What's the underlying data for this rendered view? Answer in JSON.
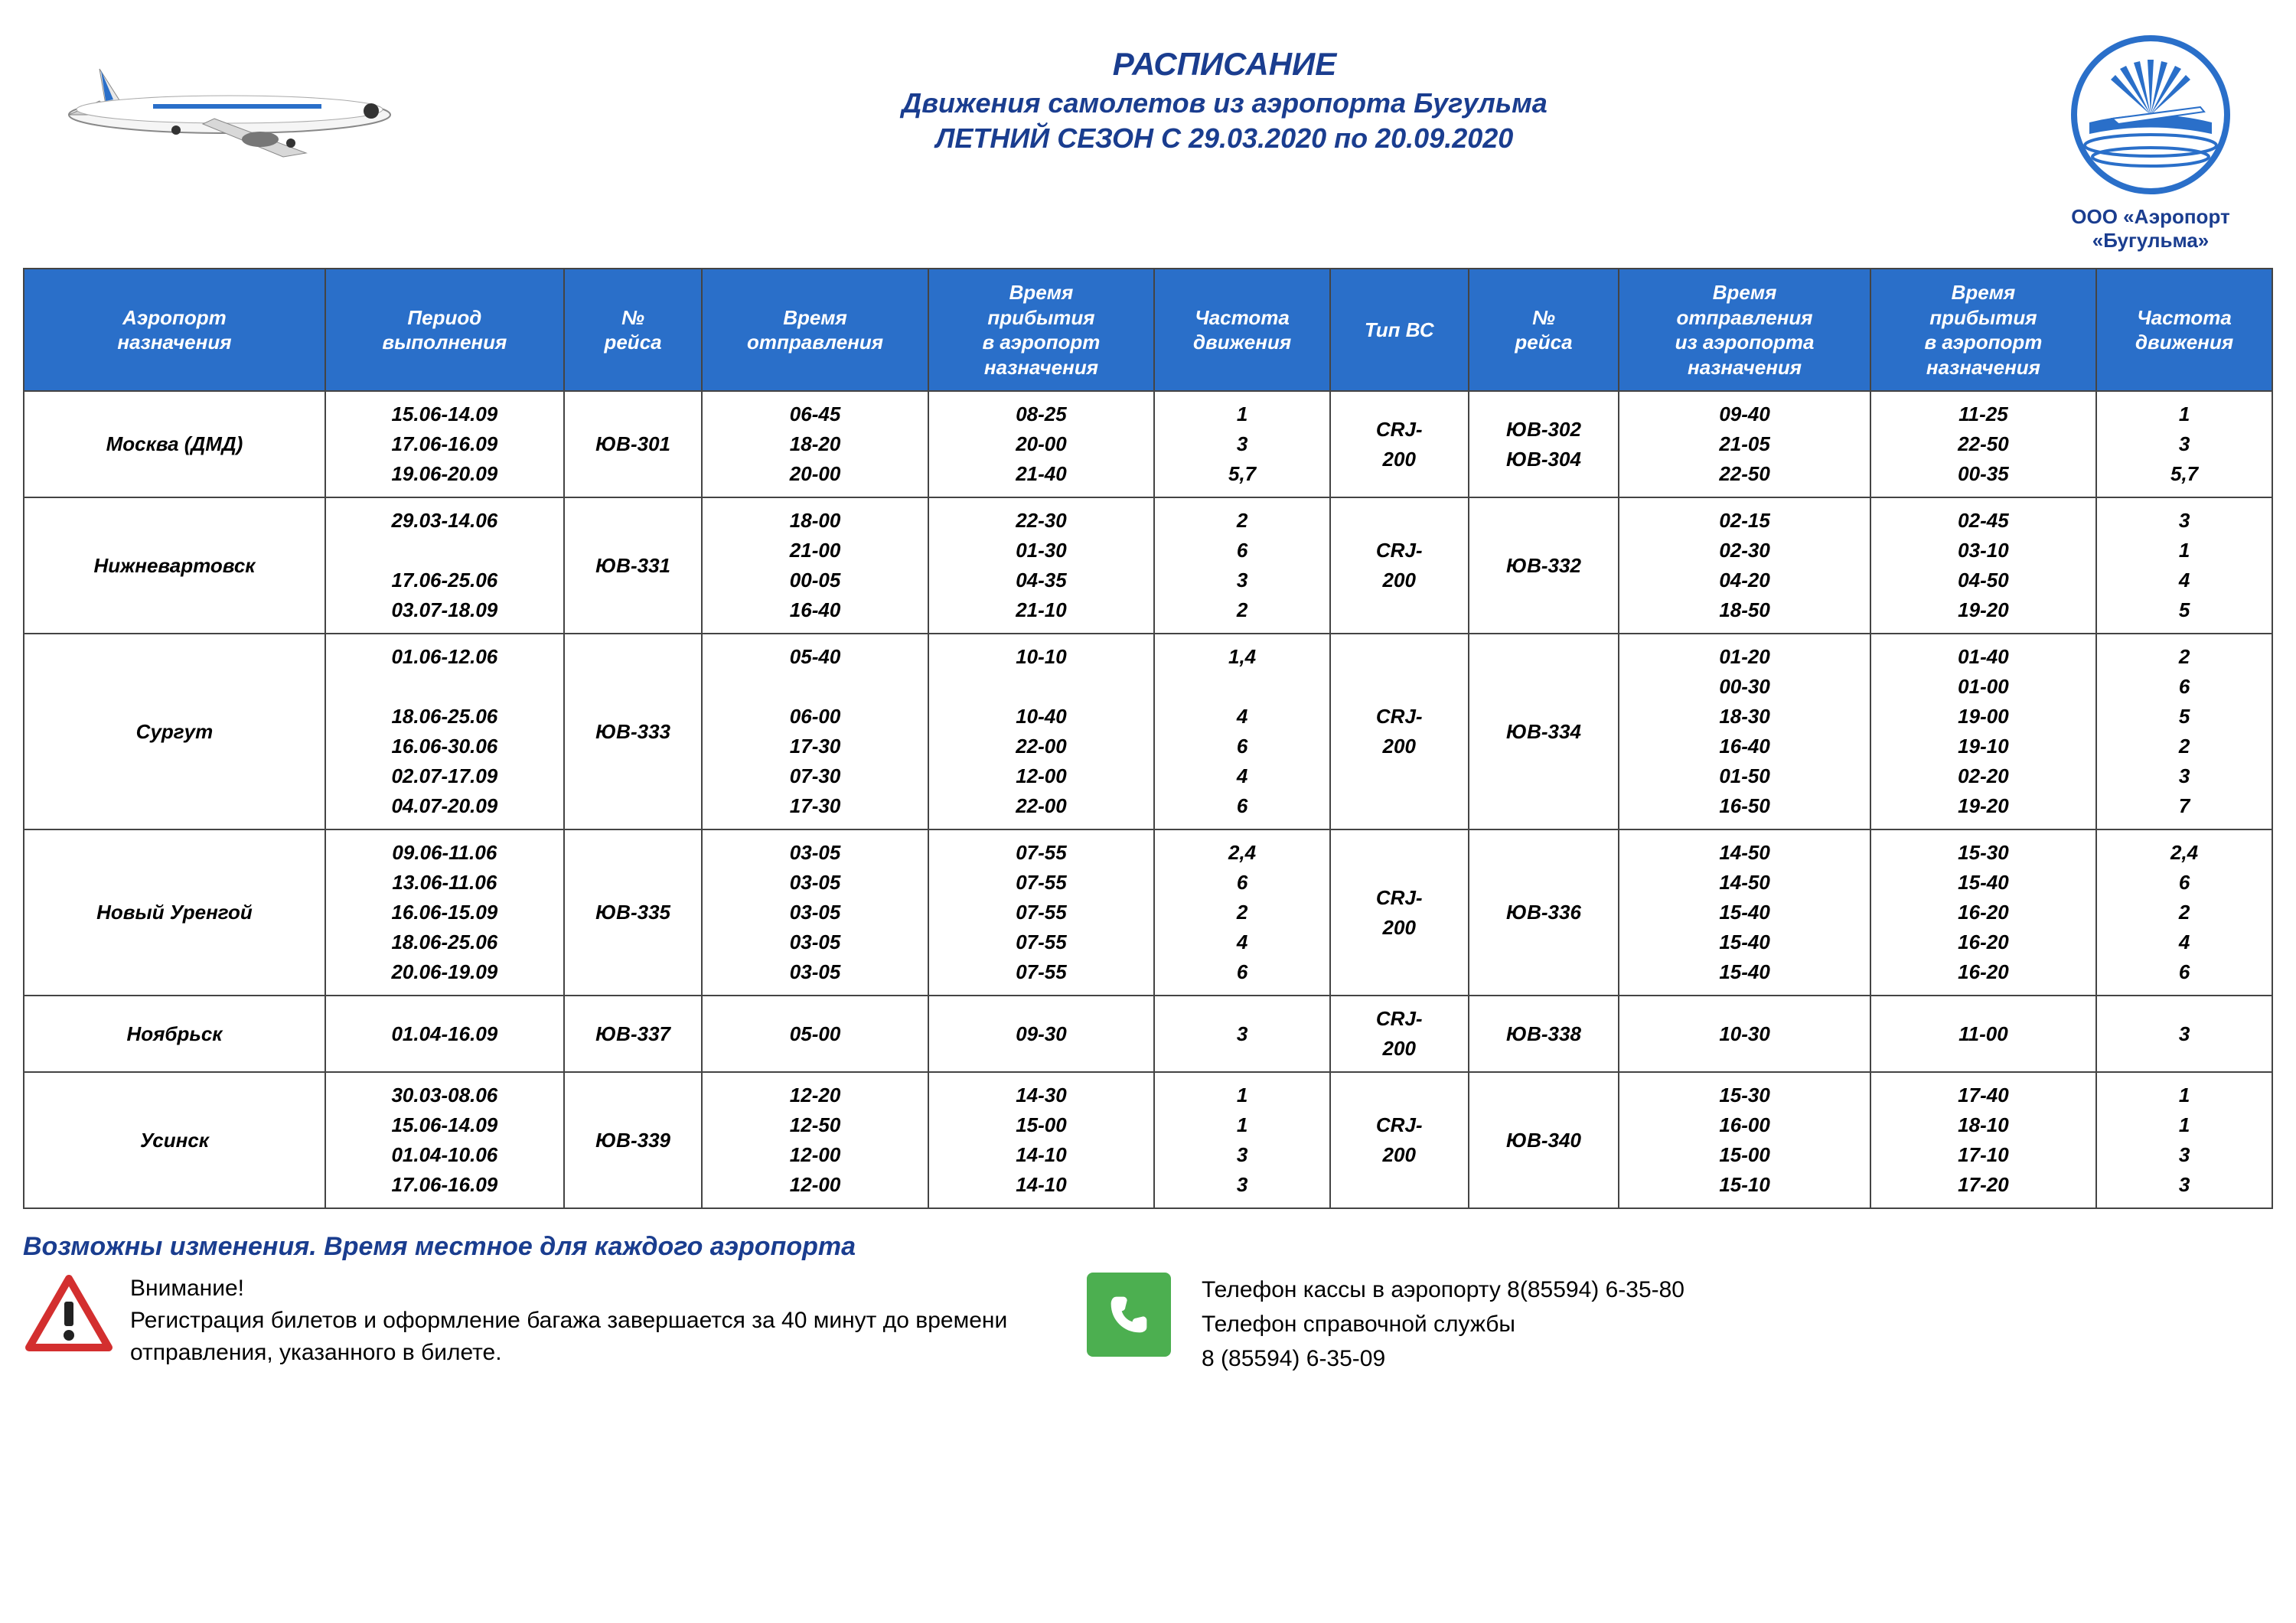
{
  "header": {
    "title": "РАСПИСАНИЕ",
    "subtitle": "Движения самолетов из аэропорта Бугульма",
    "season": "ЛЕТНИЙ СЕЗОН С 29.03.2020 по 20.09.2020",
    "logo_caption": "ООО «Аэропорт «Бугульма»"
  },
  "columns": [
    "Аэропорт\nназначения",
    "Период\nвыполнения",
    "№\nрейса",
    "Время\nотправления",
    "Время\nприбытия\nв аэропорт\nназначения",
    "Частота\nдвижения",
    "Тип ВС",
    "№\nрейса",
    "Время\nотправления\nиз аэропорта\nназначения",
    "Время\nприбытия\nв аэропорт\nназначения",
    "Частота\nдвижения"
  ],
  "rows": [
    {
      "dest": "Москва (ДМД)",
      "period": "15.06-14.09\n17.06-16.09\n19.06-20.09",
      "f1": "ЮВ-301",
      "dep1": "06-45\n18-20\n20-00",
      "arr1": "08-25\n20-00\n21-40",
      "freq1": "1\n3\n5,7",
      "type": "CRJ-\n200",
      "f2": "ЮВ-302\nЮВ-304",
      "dep2": "09-40\n21-05\n22-50",
      "arr2": "11-25\n22-50\n00-35",
      "freq2": "1\n3\n5,7"
    },
    {
      "dest": "Нижневартовск",
      "period": "29.03-14.06\n\n17.06-25.06\n03.07-18.09",
      "f1": "ЮВ-331",
      "dep1": "18-00\n21-00\n00-05\n16-40",
      "arr1": "22-30\n01-30\n04-35\n21-10",
      "freq1": "2\n6\n3\n2",
      "type": "CRJ-\n200",
      "f2": "ЮВ-332",
      "dep2": "02-15\n02-30\n04-20\n18-50",
      "arr2": "02-45\n03-10\n04-50\n19-20",
      "freq2": "3\n1\n4\n5"
    },
    {
      "dest": "Сургут",
      "period": "01.06-12.06\n\n18.06-25.06\n16.06-30.06\n02.07-17.09\n04.07-20.09",
      "f1": "ЮВ-333",
      "dep1": "05-40\n\n06-00\n17-30\n07-30\n17-30",
      "arr1": "10-10\n\n10-40\n22-00\n12-00\n22-00",
      "freq1": "1,4\n\n4\n6\n4\n6",
      "type": "CRJ-\n200",
      "f2": "ЮВ-334",
      "dep2": "01-20\n00-30\n18-30\n16-40\n01-50\n16-50",
      "arr2": "01-40\n01-00\n19-00\n19-10\n02-20\n19-20",
      "freq2": "2\n6\n5\n2\n3\n7"
    },
    {
      "dest": "Новый Уренгой",
      "period": "09.06-11.06\n13.06-11.06\n16.06-15.09\n18.06-25.06\n20.06-19.09",
      "f1": "ЮВ-335",
      "dep1": "03-05\n03-05\n03-05\n03-05\n03-05",
      "arr1": "07-55\n07-55\n07-55\n07-55\n07-55",
      "freq1": "2,4\n6\n2\n4\n6",
      "type": "CRJ-\n200",
      "f2": "ЮВ-336",
      "dep2": "14-50\n14-50\n15-40\n15-40\n15-40",
      "arr2": "15-30\n15-40\n16-20\n16-20\n16-20",
      "freq2": "2,4\n6\n2\n4\n6"
    },
    {
      "dest": "Ноябрьск",
      "period": "01.04-16.09",
      "f1": "ЮВ-337",
      "dep1": "05-00",
      "arr1": "09-30",
      "freq1": "3",
      "type": "CRJ-\n200",
      "f2": "ЮВ-338",
      "dep2": "10-30",
      "arr2": "11-00",
      "freq2": "3"
    },
    {
      "dest": "Усинск",
      "period": "30.03-08.06\n15.06-14.09\n01.04-10.06\n17.06-16.09",
      "f1": "ЮВ-339",
      "dep1": "12-20\n12-50\n12-00\n12-00",
      "arr1": "14-30\n15-00\n14-10\n14-10",
      "freq1": "1\n1\n3\n3",
      "type": "CRJ-\n200",
      "f2": "ЮВ-340",
      "dep2": "15-30\n16-00\n15-00\n15-10",
      "arr2": "17-40\n18-10\n17-10\n17-20",
      "freq2": "1\n1\n3\n3"
    }
  ],
  "footer": {
    "changes_note": "Возможны изменения. Время местное для каждого аэропорта",
    "warning_title": "Внимание!",
    "warning_body": "Регистрация билетов и оформление багажа завершается за 40 минут до времени отправления, указанного в билете.",
    "contact1": "Телефон кассы в аэропорту 8(85594) 6-35-80",
    "contact2": "Телефон справочной службы",
    "contact3": "8 (85594) 6-35-09"
  },
  "colors": {
    "header_bg": "#2a6fc9",
    "primary_text": "#1a3d8f",
    "border": "#444444",
    "phone_bg": "#4caf50"
  }
}
